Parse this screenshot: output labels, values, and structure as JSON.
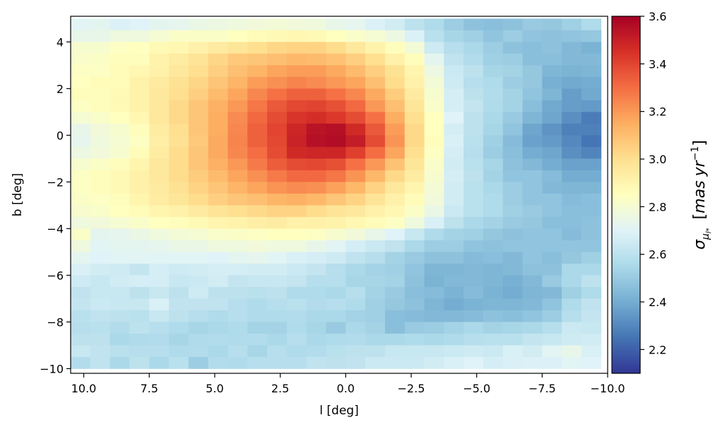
{
  "chart_data": {
    "type": "heatmap",
    "xlabel": "l [deg]",
    "ylabel": "b [deg]",
    "colorbar_label": "σ_μl*  [mas yr⁻¹]",
    "colorbar_label_parts": {
      "sigma": "σ",
      "sub1": "μ",
      "sub2": "l*",
      "unit_open": "[",
      "unit_mas": "mas",
      "unit_yr": "yr",
      "unit_exp": "−1",
      "unit_close": "]"
    },
    "xlim": [
      10.5,
      -10.0
    ],
    "ylim": [
      -10.2,
      5.1
    ],
    "clim": [
      2.1,
      3.6
    ],
    "colormap": "RdYlBu_r",
    "xticks": [
      10.0,
      7.5,
      5.0,
      2.5,
      0.0,
      -2.5,
      -5.0,
      -7.5,
      -10.0
    ],
    "xtick_labels": [
      "10.0",
      "7.5",
      "5.0",
      "2.5",
      "0.0",
      "−2.5",
      "−5.0",
      "−7.5",
      "−10.0"
    ],
    "yticks": [
      4,
      2,
      0,
      -2,
      -4,
      -6,
      -8,
      -10
    ],
    "ytick_labels": [
      "4",
      "2",
      "0",
      "−2",
      "−4",
      "−6",
      "−8",
      "−10"
    ],
    "cbar_ticks": [
      3.6,
      3.4,
      3.2,
      3.0,
      2.8,
      2.6,
      2.4,
      2.2
    ],
    "cbar_tick_labels": [
      "3.6",
      "3.4",
      "3.2",
      "3.0",
      "2.8",
      "2.6",
      "2.4",
      "2.2"
    ],
    "grid": false,
    "cell_size_deg": [
      0.75,
      0.5
    ],
    "l_centers": [
      10.125,
      9.375,
      8.625,
      7.875,
      7.125,
      6.375,
      5.625,
      4.875,
      4.125,
      3.375,
      2.625,
      1.875,
      1.125,
      0.375,
      -0.375,
      -1.125,
      -1.875,
      -2.625,
      -3.375,
      -4.125,
      -4.875,
      -5.625,
      -6.375,
      -7.125,
      -7.875,
      -8.625,
      -9.375
    ],
    "b_centers": [
      4.75,
      4.25,
      3.75,
      3.25,
      2.75,
      2.25,
      1.75,
      1.25,
      0.75,
      0.25,
      -0.25,
      -0.75,
      -1.25,
      -1.75,
      -2.25,
      -2.75,
      -3.25,
      -3.75,
      -4.25,
      -4.75,
      -5.25,
      -5.75,
      -6.25,
      -6.75,
      -7.25,
      -7.75,
      -8.25,
      -8.75,
      -9.25,
      -9.75
    ],
    "values": [
      [
        2.71,
        2.72,
        2.69,
        2.7,
        2.72,
        2.73,
        2.75,
        2.76,
        2.77,
        2.78,
        2.79,
        2.78,
        2.77,
        2.74,
        2.73,
        2.69,
        2.66,
        2.6,
        2.56,
        2.51,
        2.47,
        2.46,
        2.47,
        2.5,
        2.49,
        2.52,
        2.56
      ],
      [
        2.74,
        2.74,
        2.77,
        2.77,
        2.8,
        2.83,
        2.83,
        2.83,
        2.85,
        2.87,
        2.88,
        2.89,
        2.88,
        2.85,
        2.82,
        2.8,
        2.76,
        2.69,
        2.59,
        2.54,
        2.52,
        2.48,
        2.51,
        2.48,
        2.47,
        2.48,
        2.49
      ],
      [
        2.81,
        2.81,
        2.84,
        2.85,
        2.88,
        2.89,
        2.92,
        2.95,
        2.97,
        3.0,
        3.03,
        3.04,
        3.04,
        3.01,
        2.96,
        2.91,
        2.86,
        2.79,
        2.65,
        2.58,
        2.55,
        2.51,
        2.47,
        2.46,
        2.47,
        2.44,
        2.42
      ],
      [
        2.82,
        2.83,
        2.86,
        2.86,
        2.91,
        2.94,
        2.98,
        3.03,
        3.07,
        3.08,
        3.1,
        3.12,
        3.11,
        3.09,
        3.05,
        3.0,
        2.92,
        2.86,
        2.72,
        2.61,
        2.57,
        2.52,
        2.51,
        2.46,
        2.46,
        2.44,
        2.44
      ],
      [
        2.84,
        2.84,
        2.87,
        2.89,
        2.92,
        2.96,
        3.0,
        3.05,
        3.1,
        3.13,
        3.17,
        3.19,
        3.19,
        3.16,
        3.11,
        3.05,
        2.99,
        2.9,
        2.76,
        2.64,
        2.6,
        2.54,
        2.53,
        2.49,
        2.43,
        2.42,
        2.43
      ],
      [
        2.85,
        2.87,
        2.87,
        2.91,
        2.95,
        2.99,
        3.03,
        3.08,
        3.13,
        3.19,
        3.22,
        3.25,
        3.23,
        3.2,
        3.17,
        3.1,
        3.01,
        2.92,
        2.79,
        2.65,
        2.58,
        2.56,
        2.51,
        2.49,
        2.41,
        2.39,
        2.4
      ],
      [
        2.86,
        2.86,
        2.88,
        2.91,
        2.96,
        3.0,
        3.05,
        3.11,
        3.17,
        3.24,
        3.29,
        3.33,
        3.33,
        3.29,
        3.24,
        3.16,
        3.06,
        2.95,
        2.81,
        2.67,
        2.6,
        2.57,
        2.53,
        2.48,
        2.43,
        2.36,
        2.39
      ],
      [
        2.84,
        2.86,
        2.88,
        2.91,
        2.96,
        3.02,
        3.08,
        3.14,
        3.2,
        3.28,
        3.35,
        3.39,
        3.4,
        3.37,
        3.31,
        3.2,
        3.1,
        2.97,
        2.82,
        2.67,
        2.62,
        2.56,
        2.53,
        2.46,
        2.39,
        2.36,
        2.35
      ],
      [
        2.8,
        2.82,
        2.85,
        2.89,
        2.96,
        3.02,
        3.08,
        3.15,
        3.23,
        3.31,
        3.38,
        3.44,
        3.46,
        3.43,
        3.38,
        3.29,
        3.15,
        3.0,
        2.85,
        2.7,
        2.6,
        2.55,
        2.5,
        2.43,
        2.38,
        2.32,
        2.27
      ],
      [
        2.74,
        2.78,
        2.81,
        2.86,
        2.94,
        3.0,
        3.08,
        3.15,
        3.24,
        3.33,
        3.4,
        3.48,
        3.54,
        3.55,
        3.47,
        3.35,
        3.19,
        3.02,
        2.85,
        2.67,
        2.6,
        2.54,
        2.48,
        2.38,
        2.33,
        2.28,
        2.28
      ],
      [
        2.73,
        2.77,
        2.8,
        2.84,
        2.93,
        2.99,
        3.07,
        3.16,
        3.25,
        3.33,
        3.39,
        3.49,
        3.55,
        3.56,
        3.51,
        3.38,
        3.21,
        3.02,
        2.86,
        2.68,
        2.59,
        2.52,
        2.45,
        2.37,
        2.35,
        2.3,
        2.25
      ],
      [
        2.76,
        2.78,
        2.81,
        2.87,
        2.94,
        3.01,
        3.08,
        3.16,
        3.24,
        3.3,
        3.38,
        3.47,
        3.48,
        3.48,
        3.41,
        3.3,
        3.17,
        3.0,
        2.84,
        2.67,
        2.58,
        2.51,
        2.46,
        2.4,
        2.38,
        2.32,
        2.29
      ],
      [
        2.81,
        2.83,
        2.86,
        2.9,
        2.96,
        3.01,
        3.08,
        3.14,
        3.2,
        3.27,
        3.34,
        3.38,
        3.39,
        3.37,
        3.29,
        3.2,
        3.09,
        2.97,
        2.82,
        2.66,
        2.59,
        2.54,
        2.47,
        2.44,
        2.4,
        2.37,
        2.37
      ],
      [
        2.84,
        2.86,
        2.88,
        2.92,
        2.96,
        3.01,
        3.06,
        3.11,
        3.17,
        3.22,
        3.27,
        3.31,
        3.31,
        3.28,
        3.21,
        3.12,
        3.02,
        2.94,
        2.81,
        2.67,
        2.6,
        2.53,
        2.48,
        2.48,
        2.45,
        2.4,
        2.4
      ],
      [
        2.84,
        2.86,
        2.88,
        2.92,
        2.95,
        2.99,
        3.04,
        3.08,
        3.13,
        3.17,
        3.21,
        3.23,
        3.22,
        3.18,
        3.12,
        3.04,
        2.96,
        2.9,
        2.79,
        2.66,
        2.59,
        2.55,
        2.51,
        2.48,
        2.44,
        2.43,
        2.43
      ],
      [
        2.83,
        2.84,
        2.86,
        2.9,
        2.94,
        2.97,
        3.01,
        3.05,
        3.08,
        3.1,
        3.13,
        3.14,
        3.12,
        3.08,
        3.04,
        2.98,
        2.92,
        2.87,
        2.78,
        2.66,
        2.59,
        2.56,
        2.51,
        2.48,
        2.48,
        2.45,
        2.46
      ],
      [
        2.81,
        2.82,
        2.85,
        2.87,
        2.9,
        2.92,
        2.95,
        2.98,
        3.0,
        3.02,
        3.04,
        3.04,
        3.01,
        2.98,
        2.96,
        2.92,
        2.89,
        2.83,
        2.75,
        2.64,
        2.59,
        2.56,
        2.52,
        2.5,
        2.48,
        2.46,
        2.46
      ],
      [
        2.77,
        2.78,
        2.8,
        2.82,
        2.85,
        2.86,
        2.88,
        2.9,
        2.91,
        2.93,
        2.94,
        2.92,
        2.92,
        2.91,
        2.89,
        2.87,
        2.84,
        2.77,
        2.68,
        2.6,
        2.55,
        2.53,
        2.5,
        2.49,
        2.46,
        2.46,
        2.47
      ],
      [
        2.83,
        2.72,
        2.73,
        2.75,
        2.77,
        2.79,
        2.8,
        2.82,
        2.83,
        2.84,
        2.85,
        2.85,
        2.84,
        2.81,
        2.78,
        2.74,
        2.7,
        2.63,
        2.56,
        2.53,
        2.52,
        2.49,
        2.47,
        2.48,
        2.48,
        2.45,
        2.47
      ],
      [
        2.77,
        2.71,
        2.72,
        2.72,
        2.73,
        2.75,
        2.75,
        2.77,
        2.77,
        2.78,
        2.77,
        2.77,
        2.74,
        2.71,
        2.67,
        2.64,
        2.61,
        2.55,
        2.51,
        2.51,
        2.48,
        2.47,
        2.48,
        2.48,
        2.48,
        2.48,
        2.48
      ],
      [
        2.72,
        2.7,
        2.71,
        2.71,
        2.71,
        2.71,
        2.71,
        2.7,
        2.72,
        2.73,
        2.71,
        2.68,
        2.67,
        2.65,
        2.61,
        2.58,
        2.53,
        2.5,
        2.47,
        2.47,
        2.45,
        2.46,
        2.44,
        2.48,
        2.46,
        2.49,
        2.52
      ],
      [
        2.68,
        2.66,
        2.65,
        2.62,
        2.67,
        2.65,
        2.66,
        2.67,
        2.67,
        2.66,
        2.66,
        2.64,
        2.62,
        2.58,
        2.55,
        2.53,
        2.52,
        2.48,
        2.43,
        2.43,
        2.44,
        2.43,
        2.44,
        2.47,
        2.47,
        2.55,
        2.55
      ],
      [
        2.65,
        2.63,
        2.66,
        2.67,
        2.67,
        2.63,
        2.64,
        2.66,
        2.62,
        2.63,
        2.63,
        2.62,
        2.58,
        2.58,
        2.54,
        2.54,
        2.53,
        2.47,
        2.42,
        2.44,
        2.44,
        2.43,
        2.41,
        2.44,
        2.5,
        2.55,
        2.6
      ],
      [
        2.61,
        2.63,
        2.63,
        2.6,
        2.63,
        2.6,
        2.65,
        2.6,
        2.6,
        2.59,
        2.6,
        2.56,
        2.56,
        2.55,
        2.58,
        2.53,
        2.5,
        2.46,
        2.45,
        2.42,
        2.45,
        2.42,
        2.4,
        2.43,
        2.44,
        2.52,
        2.56
      ],
      [
        2.62,
        2.64,
        2.63,
        2.63,
        2.68,
        2.61,
        2.61,
        2.61,
        2.58,
        2.56,
        2.58,
        2.59,
        2.57,
        2.58,
        2.56,
        2.52,
        2.49,
        2.47,
        2.43,
        2.4,
        2.42,
        2.43,
        2.43,
        2.44,
        2.48,
        2.56,
        2.61
      ],
      [
        2.59,
        2.61,
        2.6,
        2.59,
        2.63,
        2.6,
        2.58,
        2.56,
        2.58,
        2.56,
        2.56,
        2.57,
        2.55,
        2.55,
        2.53,
        2.52,
        2.46,
        2.45,
        2.44,
        2.44,
        2.45,
        2.47,
        2.46,
        2.48,
        2.51,
        2.58,
        2.62
      ],
      [
        2.58,
        2.59,
        2.57,
        2.6,
        2.58,
        2.56,
        2.54,
        2.55,
        2.56,
        2.53,
        2.53,
        2.56,
        2.54,
        2.5,
        2.55,
        2.53,
        2.46,
        2.5,
        2.51,
        2.53,
        2.55,
        2.53,
        2.54,
        2.55,
        2.58,
        2.64,
        2.63
      ],
      [
        2.6,
        2.6,
        2.55,
        2.56,
        2.57,
        2.54,
        2.56,
        2.57,
        2.56,
        2.57,
        2.55,
        2.58,
        2.55,
        2.56,
        2.57,
        2.55,
        2.55,
        2.56,
        2.55,
        2.56,
        2.58,
        2.59,
        2.59,
        2.62,
        2.63,
        2.65,
        2.66
      ],
      [
        2.63,
        2.61,
        2.59,
        2.58,
        2.58,
        2.56,
        2.57,
        2.55,
        2.58,
        2.54,
        2.58,
        2.56,
        2.57,
        2.59,
        2.6,
        2.6,
        2.63,
        2.63,
        2.63,
        2.64,
        2.65,
        2.64,
        2.68,
        2.66,
        2.71,
        2.74,
        2.68
      ],
      [
        2.57,
        2.61,
        2.55,
        2.6,
        2.55,
        2.59,
        2.51,
        2.57,
        2.56,
        2.58,
        2.58,
        2.58,
        2.61,
        2.6,
        2.61,
        2.64,
        2.64,
        2.64,
        2.66,
        2.68,
        2.7,
        2.67,
        2.68,
        2.69,
        2.69,
        2.71,
        2.7
      ]
    ]
  }
}
